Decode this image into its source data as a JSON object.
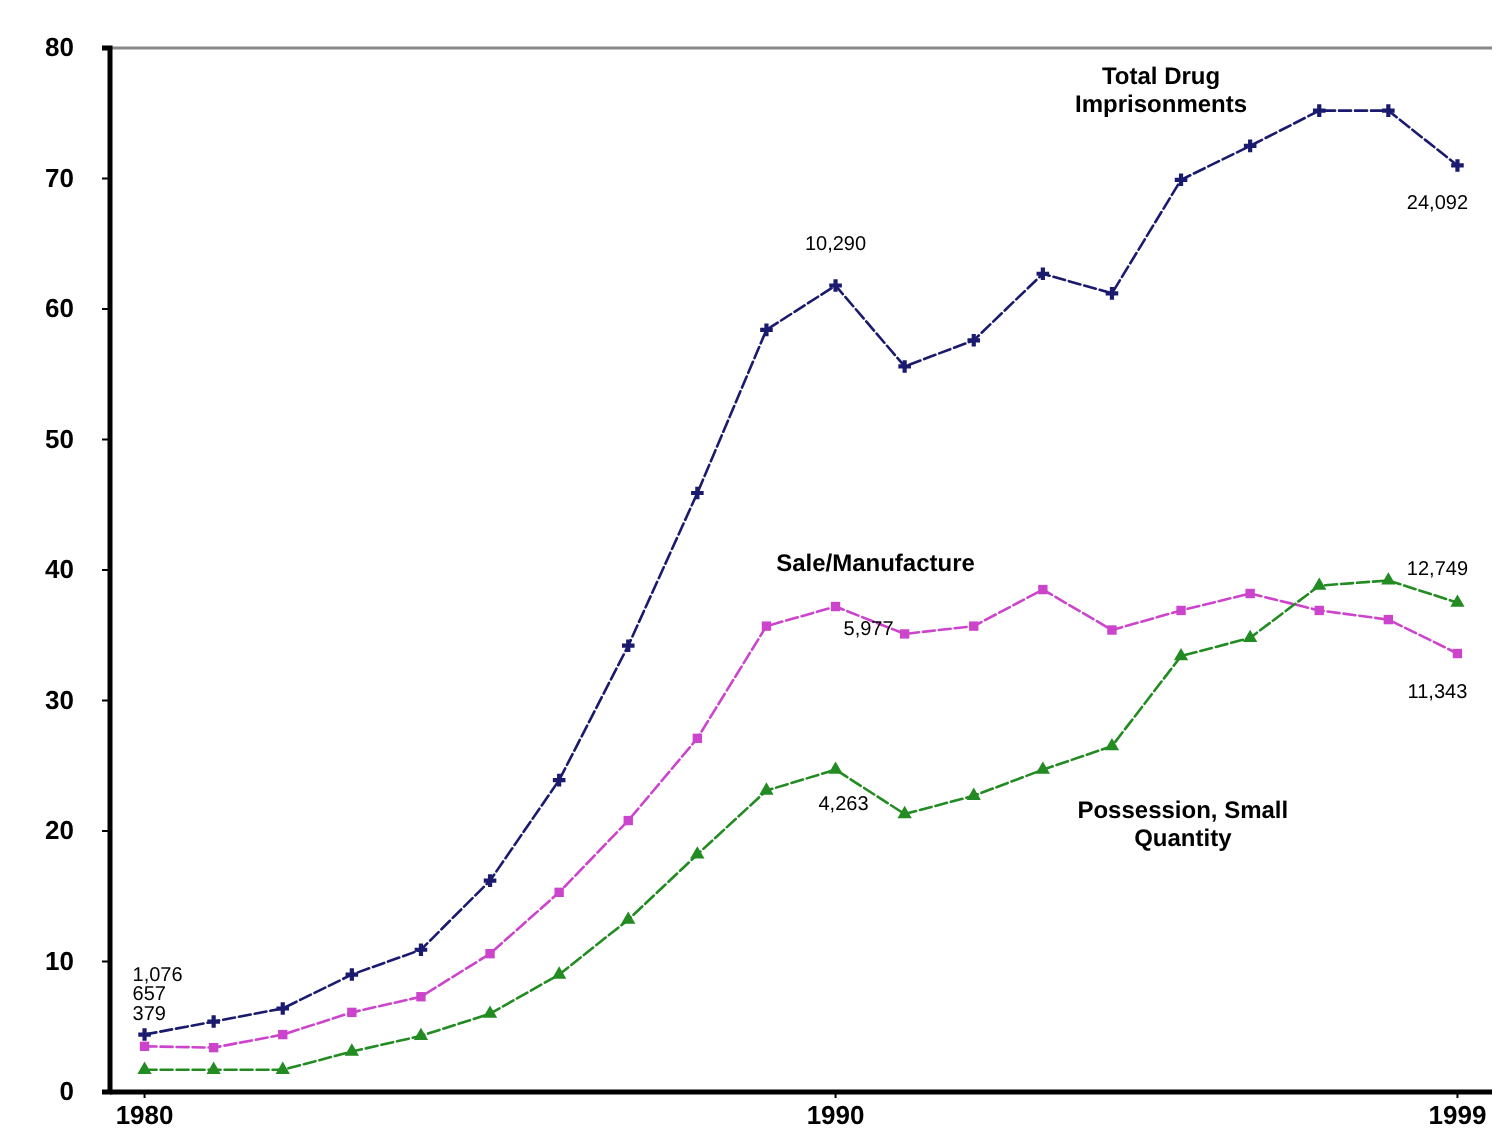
{
  "chart_data": {
    "type": "line",
    "x": [
      1980,
      1981,
      1982,
      1983,
      1984,
      1985,
      1986,
      1987,
      1988,
      1989,
      1990,
      1991,
      1992,
      1993,
      1994,
      1995,
      1996,
      1997,
      1998,
      1999
    ],
    "series": [
      {
        "name": "Total Drug Imprisonments",
        "color": "#1a1a6e",
        "marker": "cross",
        "values": [
          4.4,
          5.4,
          6.4,
          9,
          10.9,
          16.2,
          23.9,
          34.2,
          45.9,
          58.4,
          61.8,
          55.6,
          57.6,
          62.7,
          61.2,
          69.9,
          72.5,
          75.2,
          75.2,
          71
        ]
      },
      {
        "name": "Sale/Manufacture",
        "color": "#cc44cc",
        "marker": "square",
        "values": [
          3.5,
          3.4,
          4.4,
          6.1,
          7.3,
          10.6,
          15.3,
          20.8,
          27.1,
          35.7,
          37.2,
          35.1,
          35.7,
          38.5,
          35.4,
          36.9,
          38.2,
          36.9,
          36.2,
          33.6
        ]
      },
      {
        "name": "Possession, Small Quantity",
        "color": "#228b22",
        "marker": "triangle",
        "values": [
          1.7,
          1.7,
          1.7,
          3.1,
          4.3,
          6,
          9,
          13.2,
          18.2,
          23.1,
          24.7,
          21.3,
          22.7,
          24.7,
          26.5,
          33.4,
          34.8,
          38.8,
          39.2,
          37.5
        ]
      }
    ],
    "xlim": [
      1979.5,
      1999.5
    ],
    "xticks": [
      1980,
      1990,
      1999
    ],
    "ylim": [
      0,
      80
    ],
    "yticks": [
      0,
      10,
      20,
      30,
      40,
      50,
      60,
      70,
      80
    ],
    "grid": false,
    "line_style": "dashed",
    "annotations": [
      {
        "text": "1,076",
        "x": 1980,
        "y": 4.4
      },
      {
        "text": "657",
        "x": 1980,
        "y": 3.5
      },
      {
        "text": "379",
        "x": 1980,
        "y": 1.7
      },
      {
        "text": "10,290",
        "x": 1990,
        "y": 61.8
      },
      {
        "text": "5,977",
        "x": 1990,
        "y": 37.2
      },
      {
        "text": "4,263",
        "x": 1990,
        "y": 24.7
      },
      {
        "text": "24,092",
        "x": 1999,
        "y": 71
      },
      {
        "text": "12,749",
        "x": 1999,
        "y": 37.5
      },
      {
        "text": "11,343",
        "x": 1999,
        "y": 33.6
      }
    ]
  }
}
